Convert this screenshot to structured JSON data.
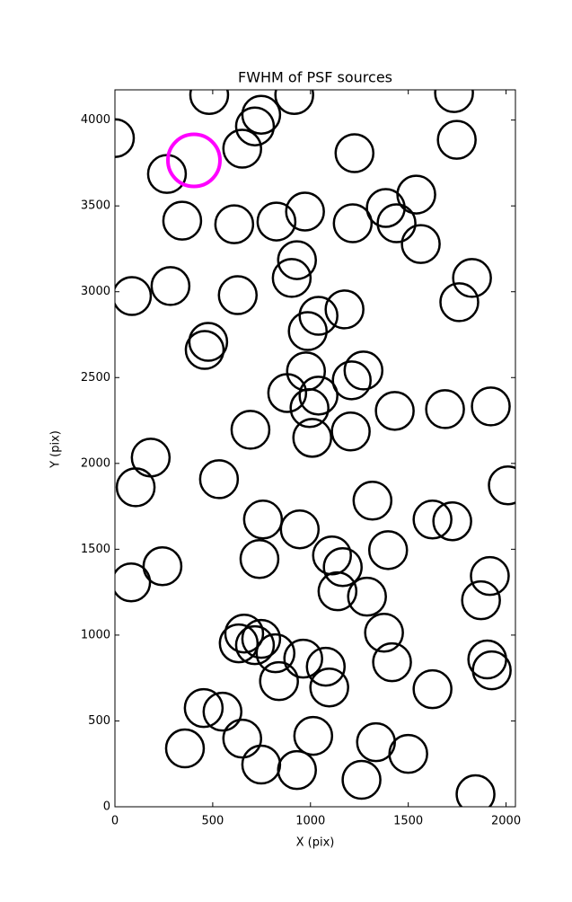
{
  "chart_data": {
    "type": "scatter",
    "title": "FWHM of PSF sources",
    "x_label": "X (pix)",
    "y_label": "Y (pix)",
    "xlim": [
      0,
      2048
    ],
    "ylim": [
      0,
      4176
    ],
    "xticks": [
      0,
      500,
      1000,
      1500,
      2000
    ],
    "yticks": [
      0,
      500,
      1000,
      1500,
      2000,
      2500,
      3000,
      3500,
      4000
    ],
    "series": [
      {
        "color": "#000000",
        "x": [
          0,
          482,
          917,
          748,
          716,
          651,
          266,
          1734,
          1748,
          1225,
          972,
          826,
          610,
          344,
          1216,
          1385,
          1440,
          1541,
          1564,
          931,
          904,
          1826,
          1761,
          284,
          87,
          628,
          1041,
          1174,
          986,
          477,
          459,
          1271,
          1211,
          977,
          881,
          1041,
          995,
          1431,
          1688,
          1922,
          693,
          1206,
          1009,
          183,
          106,
          532,
          2009,
          1317,
          757,
          1624,
          1725,
          945,
          1397,
          1110,
          739,
          1165,
          243,
          83,
          1917,
          1289,
          1872,
          1138,
          1376,
          661,
          748,
          633,
          716,
          821,
          963,
          1078,
          1904,
          1927,
          1417,
          839,
          1096,
          1624,
          454,
          550,
          1014,
          651,
          358,
          1335,
          1500,
          748,
          931,
          1261,
          1844
        ],
        "values": [
          3895,
          4146,
          4146,
          4031,
          3963,
          3833,
          3686,
          4157,
          3885,
          3807,
          3467,
          3409,
          3393,
          3414,
          3399,
          3488,
          3399,
          3566,
          3278,
          3184,
          3080,
          3080,
          2939,
          3033,
          2975,
          2980,
          2860,
          2897,
          2771,
          2708,
          2661,
          2541,
          2484,
          2536,
          2410,
          2395,
          2322,
          2306,
          2316,
          2332,
          2196,
          2186,
          2149,
          2034,
          1861,
          1908,
          1872,
          1783,
          1673,
          1673,
          1663,
          1616,
          1495,
          1464,
          1443,
          1396,
          1401,
          1307,
          1344,
          1224,
          1203,
          1255,
          1014,
          1009,
          978,
          952,
          941,
          894,
          863,
          816,
          858,
          795,
          842,
          732,
          695,
          685,
          575,
          554,
          413,
          397,
          340,
          376,
          308,
          246,
          214,
          157,
          73
        ]
      },
      {
        "color": "#ff00ff",
        "x": [
          404
        ],
        "values": [
          3765
        ]
      }
    ]
  }
}
